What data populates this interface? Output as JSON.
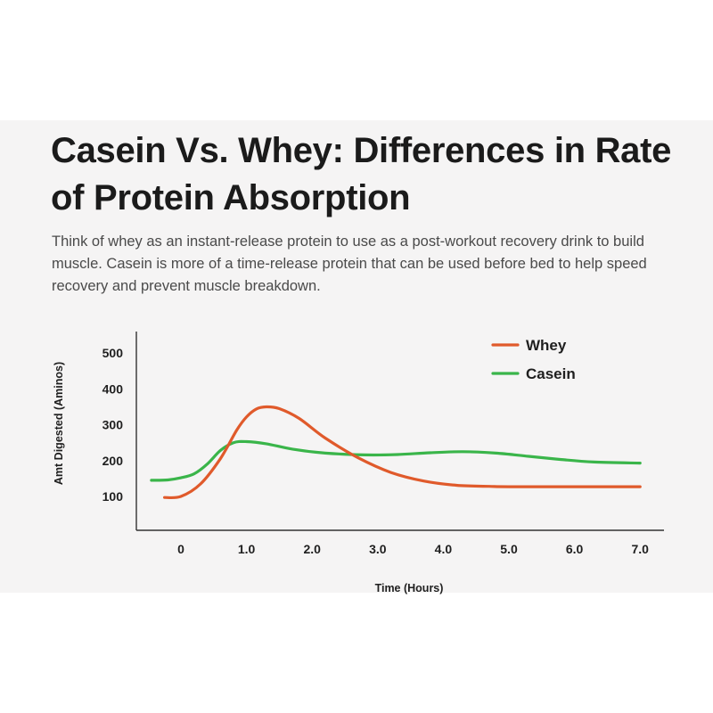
{
  "header": {
    "title": "Casein Vs. Whey: Differences in Rate of Protein Absorption",
    "description": "Think of whey as an instant-release protein to use as a post-workout recovery drink to build muscle. Casein is more of a time-release protein that can be used before bed to help speed recovery and prevent muscle breakdown."
  },
  "chart_data": {
    "type": "line",
    "title": "Casein Vs. Whey: Differences in Rate of Protein Absorption",
    "xlabel": "Time (Hours)",
    "ylabel": "Amt Digested (Aminos)",
    "xlim": [
      -0.5,
      7.3
    ],
    "ylim": [
      0,
      550
    ],
    "xticks": [
      0,
      1,
      2,
      3,
      4,
      5,
      6,
      7
    ],
    "xtick_labels": [
      "0",
      "1.0",
      "2.0",
      "3.0",
      "4.0",
      "5.0",
      "6.0",
      "7.0"
    ],
    "yticks": [
      100,
      200,
      300,
      400,
      500
    ],
    "ytick_labels": [
      "100",
      "200",
      "300",
      "400",
      "500"
    ],
    "grid": false,
    "legend_position": "top-right",
    "series": [
      {
        "name": "Whey",
        "color": "#e05a2b",
        "x": [
          -0.25,
          0,
          0.3,
          0.6,
          0.85,
          1.0,
          1.15,
          1.3,
          1.5,
          1.8,
          2.2,
          2.7,
          3.2,
          3.7,
          4.2,
          4.7,
          5.0,
          6.0,
          7.0
        ],
        "y": [
          97,
          100,
          135,
          205,
          285,
          322,
          344,
          350,
          345,
          318,
          263,
          208,
          167,
          143,
          131,
          128,
          127,
          127,
          127
        ]
      },
      {
        "name": "Casein",
        "color": "#3ab54a",
        "x": [
          -0.45,
          -0.2,
          0,
          0.2,
          0.4,
          0.6,
          0.8,
          1.0,
          1.3,
          1.7,
          2.2,
          2.8,
          3.3,
          3.8,
          4.3,
          4.8,
          5.3,
          5.8,
          6.3,
          7.0
        ],
        "y": [
          145,
          146,
          152,
          163,
          190,
          228,
          250,
          253,
          247,
          232,
          221,
          216,
          217,
          222,
          225,
          221,
          212,
          203,
          196,
          193
        ]
      }
    ]
  }
}
